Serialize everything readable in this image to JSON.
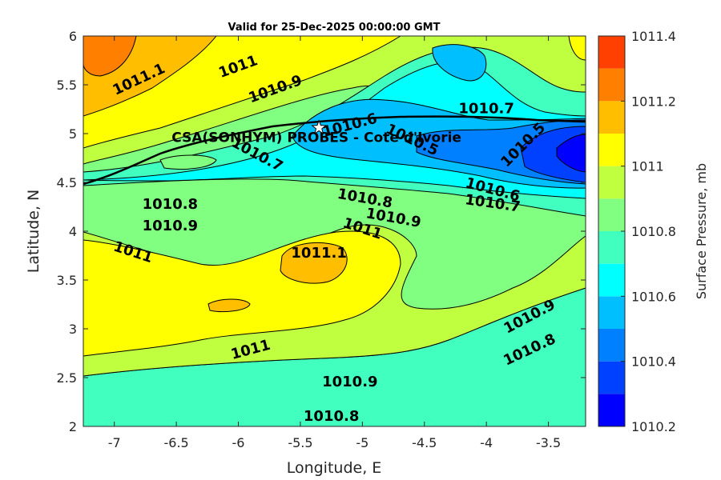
{
  "chart_data": {
    "type": "heatmap",
    "title": "Valid for 25-Dec-2025 00:00:00 GMT",
    "xlabel": "Longitude, E",
    "ylabel": "Latitude, N",
    "xlim": [
      -7.25,
      -3.2
    ],
    "ylim": [
      2,
      6
    ],
    "x_ticks": [
      -7,
      -6.5,
      -6,
      -5.5,
      -5,
      -4.5,
      -4,
      -3.5
    ],
    "x_tick_labels": [
      "-7",
      "-6.5",
      "-6",
      "-5.5",
      "-5",
      "-4.5",
      "-4",
      "-3.5"
    ],
    "y_ticks": [
      2,
      2.5,
      3,
      3.5,
      4,
      4.5,
      5,
      5.5,
      6
    ],
    "y_tick_labels": [
      "2",
      "2.5",
      "3",
      "3.5",
      "4",
      "4.5",
      "5",
      "5.5",
      "6"
    ],
    "colorbar": {
      "label": "Surface Pressure, mb",
      "min": 1010.2,
      "max": 1011.4,
      "ticks": [
        1010.2,
        1010.4,
        1010.6,
        1010.8,
        1011,
        1011.2,
        1011.4
      ],
      "tick_labels": [
        "1010.2",
        "1010.4",
        "1010.6",
        "1010.8",
        "1011",
        "1011.2",
        "1011.4"
      ],
      "levels": [
        1010.2,
        1010.3,
        1010.4,
        1010.5,
        1010.6,
        1010.7,
        1010.8,
        1010.9,
        1011.0,
        1011.1,
        1011.2,
        1011.3
      ],
      "colors": [
        "#0000ff",
        "#0040ff",
        "#0080ff",
        "#00bfff",
        "#00ffff",
        "#40ffbf",
        "#80ff80",
        "#bfff40",
        "#ffff00",
        "#ffbf00",
        "#ff8000",
        "#ff4000"
      ]
    },
    "station": {
      "label": "CSA(SONHYM) PROBES  - Cote d'Ivorie",
      "lon": -5.35,
      "lat": 5.06
    },
    "contour_labels": [
      {
        "text": "1011.1",
        "lon": -6.8,
        "lat": 5.55,
        "angle": -25
      },
      {
        "text": "1011",
        "lon": -6.0,
        "lat": 5.68,
        "angle": -20
      },
      {
        "text": "1010.9",
        "lon": -5.7,
        "lat": 5.45,
        "angle": -20
      },
      {
        "text": "1010.7",
        "lon": -4.0,
        "lat": 5.25,
        "angle": 0
      },
      {
        "text": "1010.6",
        "lon": -5.1,
        "lat": 5.08,
        "angle": -15
      },
      {
        "text": "1010.5",
        "lon": -4.6,
        "lat": 4.93,
        "angle": 25
      },
      {
        "text": "1010.5",
        "lon": -3.7,
        "lat": 4.88,
        "angle": -45
      },
      {
        "text": "1010.7",
        "lon": -5.85,
        "lat": 4.78,
        "angle": 28
      },
      {
        "text": "1010.8",
        "lon": -6.55,
        "lat": 4.27,
        "angle": 0
      },
      {
        "text": "1010.9",
        "lon": -6.55,
        "lat": 4.05,
        "angle": 0
      },
      {
        "text": "1011",
        "lon": -6.85,
        "lat": 3.78,
        "angle": 18
      },
      {
        "text": "1010.8",
        "lon": -4.98,
        "lat": 4.33,
        "angle": 10
      },
      {
        "text": "1010.9",
        "lon": -4.75,
        "lat": 4.13,
        "angle": 10
      },
      {
        "text": "1011",
        "lon": -5.0,
        "lat": 4.02,
        "angle": 18
      },
      {
        "text": "1010.6",
        "lon": -3.95,
        "lat": 4.42,
        "angle": 15
      },
      {
        "text": "1010.7",
        "lon": -3.95,
        "lat": 4.28,
        "angle": 8
      },
      {
        "text": "1011.1",
        "lon": -5.35,
        "lat": 3.77,
        "angle": 0
      },
      {
        "text": "1011",
        "lon": -5.9,
        "lat": 2.78,
        "angle": -15
      },
      {
        "text": "1010.9",
        "lon": -5.1,
        "lat": 2.45,
        "angle": 0
      },
      {
        "text": "1010.8",
        "lon": -5.25,
        "lat": 2.1,
        "angle": 0
      },
      {
        "text": "1010.9",
        "lon": -3.65,
        "lat": 3.12,
        "angle": -28
      },
      {
        "text": "1010.8",
        "lon": -3.65,
        "lat": 2.78,
        "angle": -25
      }
    ]
  }
}
